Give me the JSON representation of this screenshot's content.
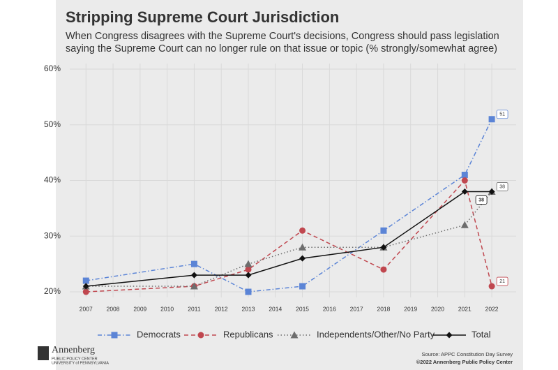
{
  "chart_data": {
    "type": "line",
    "title": "Stripping Supreme Court Jurisdiction",
    "subtitle": [
      "When Congress disagrees with the Supreme Court's decisions, Congress should pass legislation",
      "saying the Supreme Court can no longer rule on that issue or topic (% strongly/somewhat agree)"
    ],
    "x": [
      2007,
      2011,
      2013,
      2015,
      2018,
      2021,
      2022
    ],
    "xlim": [
      2006.4,
      2022.9
    ],
    "xticks": [
      2007,
      2008,
      2009,
      2010,
      2011,
      2012,
      2013,
      2014,
      2015,
      2016,
      2017,
      2018,
      2019,
      2020,
      2021,
      2022
    ],
    "ylim": [
      19,
      61
    ],
    "yticks": [
      {
        "value": 20,
        "label": "20%"
      },
      {
        "value": 30,
        "label": "30%"
      },
      {
        "value": 40,
        "label": "40%"
      },
      {
        "value": 50,
        "label": "50%"
      },
      {
        "value": 60,
        "label": "60%"
      }
    ],
    "grid": true,
    "legend": "bottom",
    "series": [
      {
        "name": "Democrats",
        "color": "#5b84d6",
        "line_style": "dashdot",
        "marker": "square",
        "values": [
          22,
          25,
          20,
          21,
          31,
          41,
          51
        ]
      },
      {
        "name": "Republicans",
        "color": "#c0474f",
        "line_style": "dashed",
        "marker": "circle",
        "values": [
          20,
          21,
          24,
          31,
          24,
          40,
          21
        ]
      },
      {
        "name": "Independents/Other/No Party",
        "color": "#6d6d6d",
        "line_style": "dotted",
        "marker": "triangle",
        "values": [
          21,
          21,
          25,
          28,
          28,
          32,
          38
        ]
      },
      {
        "name": "Total",
        "color": "#111111",
        "line_style": "solid",
        "marker": "diamond",
        "values": [
          21,
          23,
          23,
          26,
          28,
          38,
          38
        ]
      }
    ],
    "footer": {
      "logo": "Annenberg",
      "logo_sub1": "PUBLIC POLICY CENTER",
      "logo_sub2": "UNIVERSITY of PENNSYLVANIA",
      "source": "Source: APPC Constitution Day Survey",
      "copyright": "©2022 Annenberg Public Policy Center"
    }
  }
}
